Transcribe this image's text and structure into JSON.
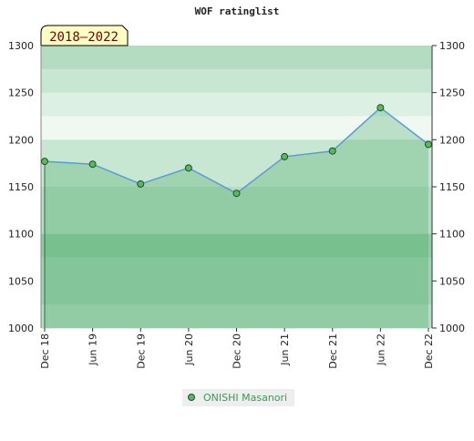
{
  "chart_data": {
    "type": "line",
    "title": "WOF ratinglist",
    "period": "2018–2022",
    "categories": [
      "Dec 18",
      "Jun 19",
      "Dec 19",
      "Jun 20",
      "Dec 20",
      "Jun 21",
      "Dec 21",
      "Jun 22",
      "Dec 22"
    ],
    "series": [
      {
        "name": "ONISHI Masanori",
        "color": "#5cb85c",
        "line_color": "#5b9bd5",
        "values": [
          1177,
          1174,
          1153,
          1170,
          1143,
          1182,
          1188,
          1234,
          1195
        ]
      }
    ],
    "ylim": [
      1000,
      1300
    ],
    "yticks": [
      1000,
      1050,
      1100,
      1150,
      1200,
      1250,
      1300
    ],
    "y2lim": [
      1000,
      1300
    ],
    "y2ticks": [
      1000,
      1050,
      1100,
      1150,
      1200,
      1250,
      1300
    ],
    "legend": "bottom"
  }
}
